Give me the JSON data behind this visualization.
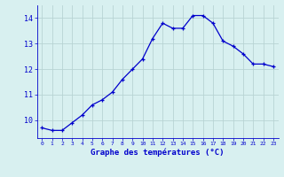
{
  "x": [
    0,
    1,
    2,
    3,
    4,
    5,
    6,
    7,
    8,
    9,
    10,
    11,
    12,
    13,
    14,
    15,
    16,
    17,
    18,
    19,
    20,
    21,
    22,
    23
  ],
  "y": [
    9.7,
    9.6,
    9.6,
    9.9,
    10.2,
    10.6,
    10.8,
    11.1,
    11.6,
    12.0,
    12.4,
    13.2,
    13.8,
    13.6,
    13.6,
    14.1,
    14.1,
    13.8,
    13.1,
    12.9,
    12.6,
    12.2,
    12.2,
    12.1
  ],
  "xlabel": "Graphe des températures (°C)",
  "bg_color": "#d8f0f0",
  "grid_color": "#b8d4d4",
  "line_color": "#0000cc",
  "marker_color": "#0000cc",
  "tick_label_color": "#0000cc",
  "axis_color": "#0000cc",
  "ylim": [
    9.3,
    14.5
  ],
  "yticks": [
    10,
    11,
    12,
    13,
    14
  ],
  "xlim": [
    -0.5,
    23.5
  ],
  "xticks": [
    0,
    1,
    2,
    3,
    4,
    5,
    6,
    7,
    8,
    9,
    10,
    11,
    12,
    13,
    14,
    15,
    16,
    17,
    18,
    19,
    20,
    21,
    22,
    23
  ]
}
